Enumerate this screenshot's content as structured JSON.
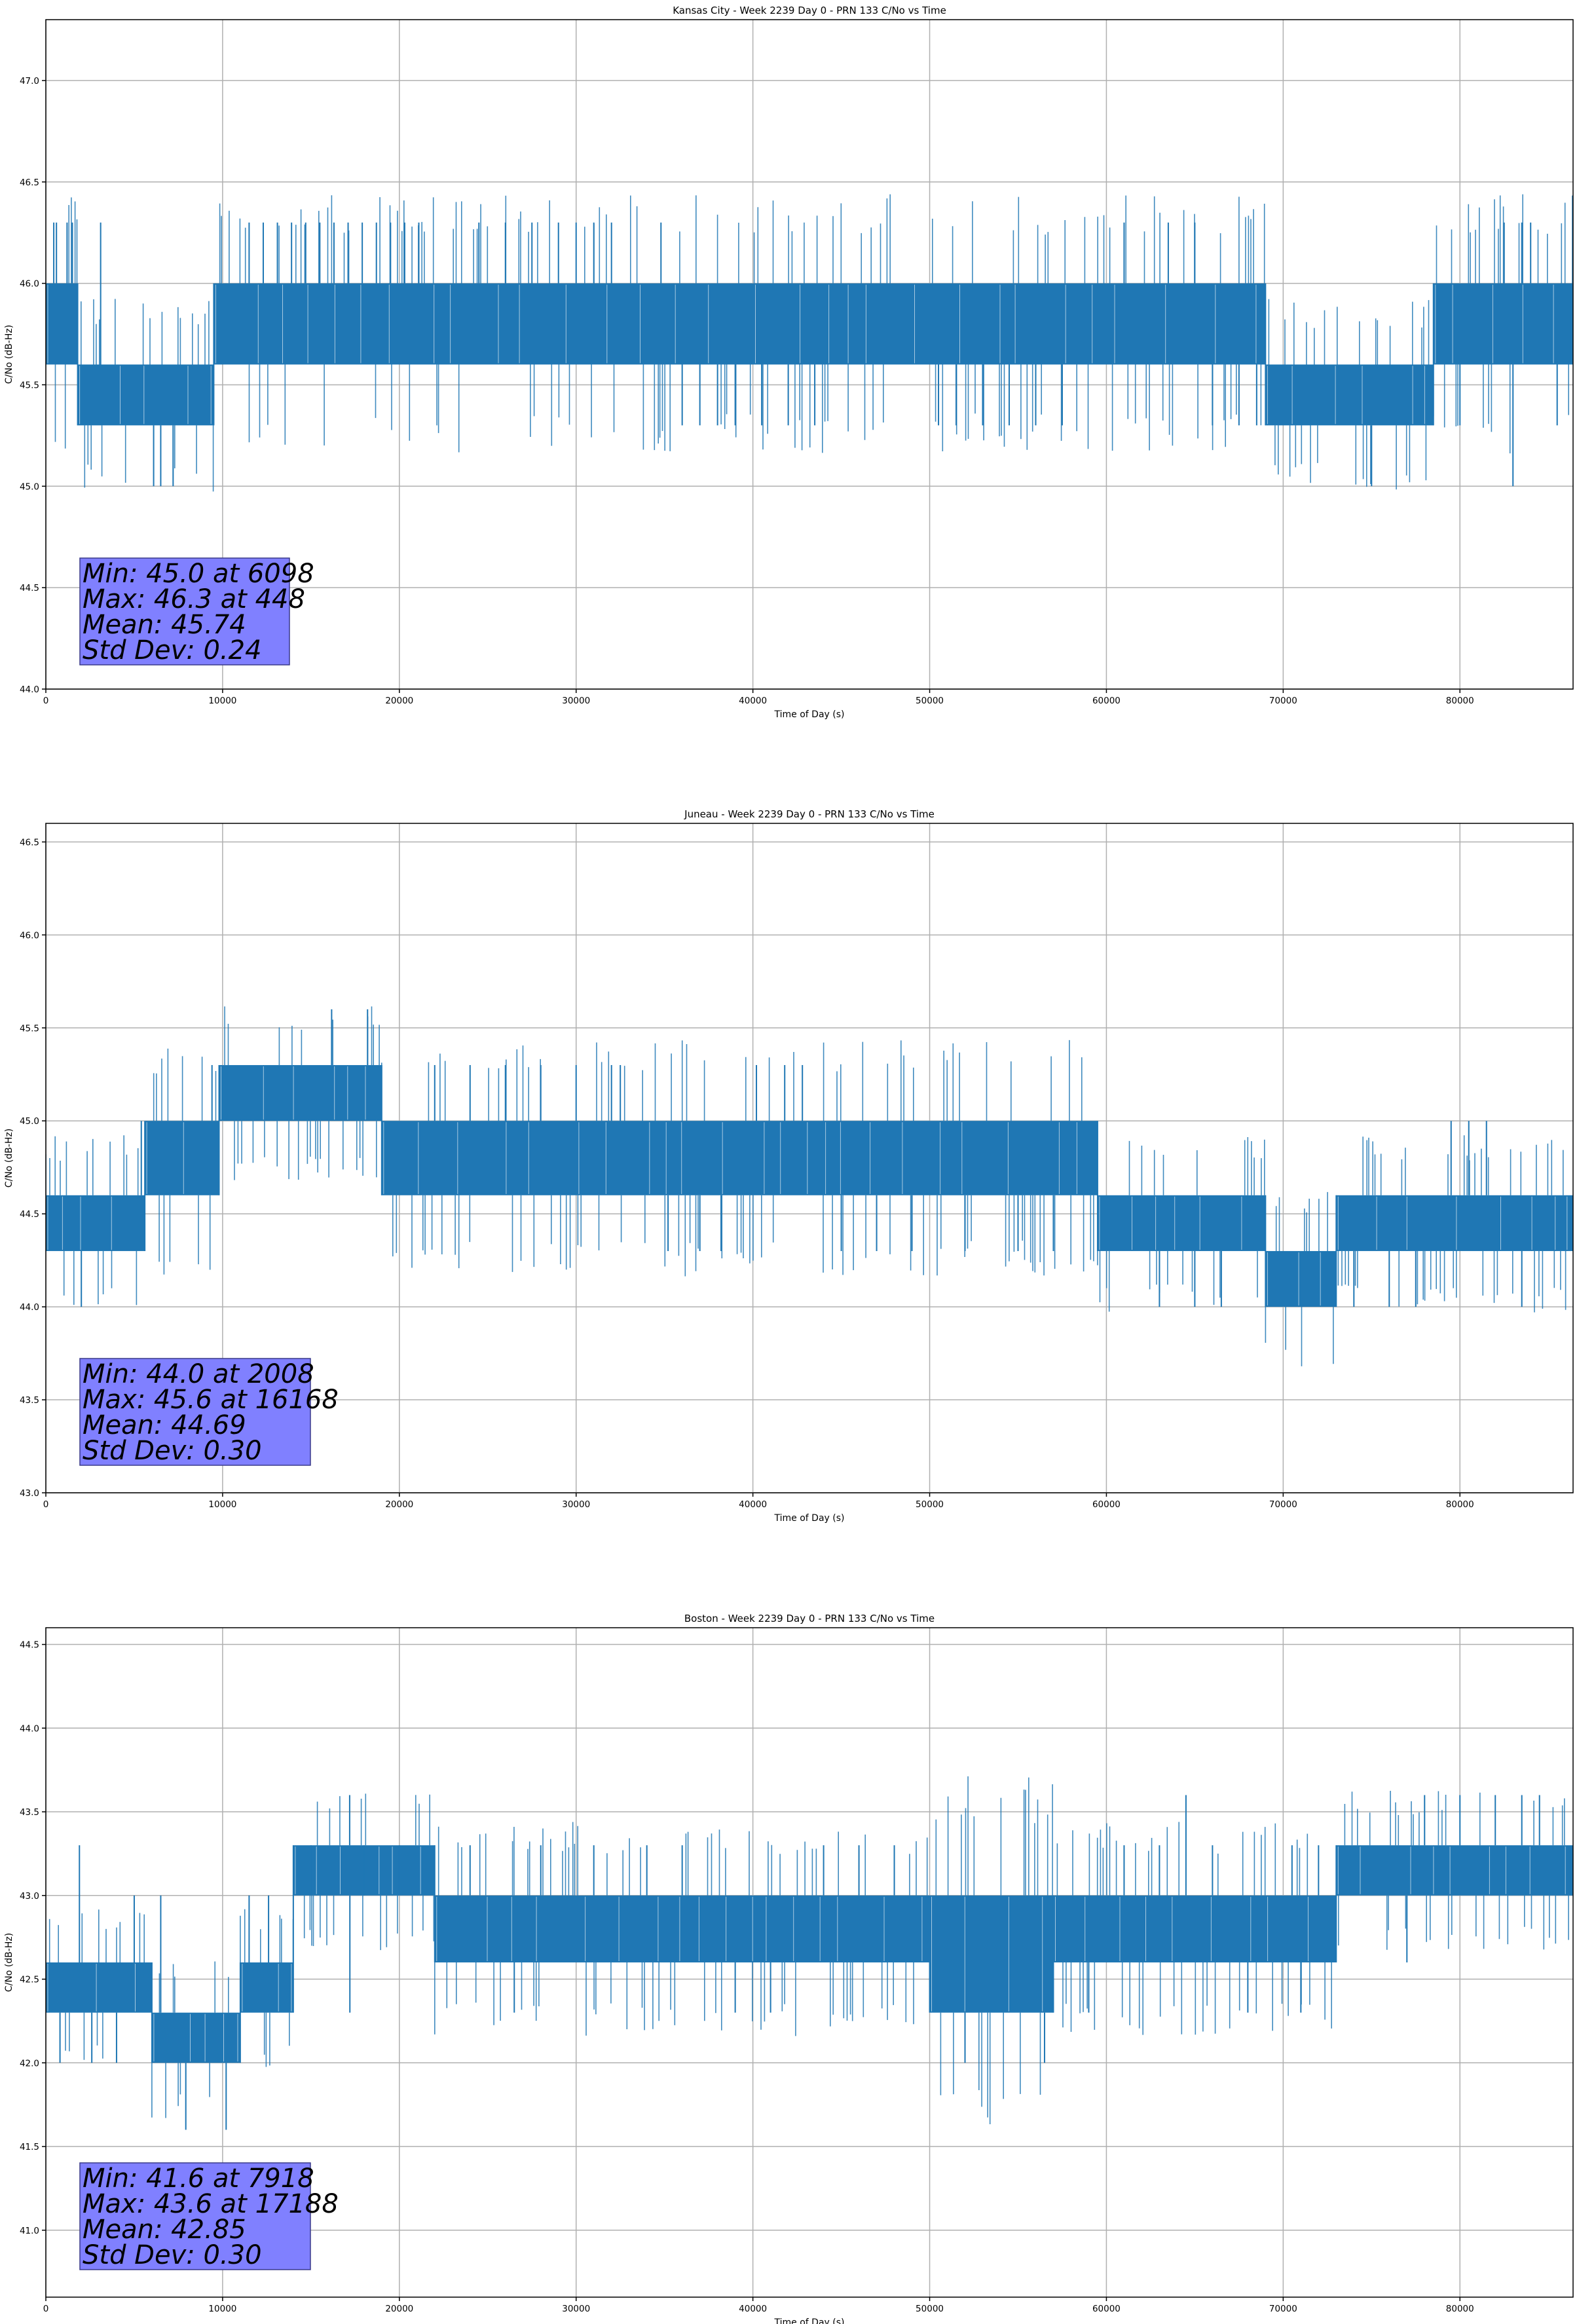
{
  "chart_data": [
    {
      "type": "line",
      "title": "Kansas City - Week 2239 Day 0 - PRN 133 C/No vs Time",
      "xlabel": "Time of Day (s)",
      "ylabel": "C/No (dB-Hz)",
      "xlim": [
        0,
        86400
      ],
      "ylim": [
        44.0,
        47.3
      ],
      "xticks": [
        0,
        10000,
        20000,
        30000,
        40000,
        50000,
        60000,
        70000,
        80000
      ],
      "xtick_labels": [
        "0",
        "10000",
        "20000",
        "30000",
        "40000",
        "50000",
        "60000",
        "70000",
        "80000"
      ],
      "yticks": [
        44.0,
        44.5,
        45.0,
        45.5,
        46.0,
        46.5,
        47.0
      ],
      "ytick_labels": [
        "44.0",
        "44.5",
        "45.0",
        "45.5",
        "46.0",
        "46.5",
        "47.0"
      ],
      "grid": true,
      "color": "#1f77b4",
      "band_segments": [
        {
          "x": [
            0,
            1800
          ],
          "range": [
            45.6,
            46.0
          ]
        },
        {
          "x": [
            1800,
            9500
          ],
          "range": [
            45.3,
            45.6
          ]
        },
        {
          "x": [
            9500,
            35500
          ],
          "range": [
            45.6,
            46.0
          ]
        },
        {
          "x": [
            35500,
            69000
          ],
          "range": [
            45.6,
            46.0
          ]
        },
        {
          "x": [
            69000,
            78500
          ],
          "range": [
            45.3,
            45.6
          ]
        },
        {
          "x": [
            78500,
            86400
          ],
          "range": [
            45.6,
            46.0
          ]
        }
      ],
      "spikes": [
        {
          "x": 448,
          "v": 46.3
        },
        {
          "x": 600,
          "v": 46.3
        },
        {
          "x": 1200,
          "v": 46.3
        },
        {
          "x": 1500,
          "v": 46.3
        },
        {
          "x": 2000,
          "v": 45.3
        },
        {
          "x": 3100,
          "v": 46.3
        },
        {
          "x": 3200,
          "v": 45.3
        },
        {
          "x": 6098,
          "v": 45.0
        },
        {
          "x": 6500,
          "v": 45.0
        },
        {
          "x": 7200,
          "v": 45.0
        },
        {
          "x": 4500,
          "v": 45.3
        },
        {
          "x": 5500,
          "v": 45.3
        },
        {
          "x": 8000,
          "v": 45.3
        },
        {
          "x": 9000,
          "v": 45.3
        },
        {
          "x": 11500,
          "v": 46.3
        },
        {
          "x": 12300,
          "v": 46.3
        },
        {
          "x": 13100,
          "v": 46.3
        },
        {
          "x": 13900,
          "v": 46.3
        },
        {
          "x": 14700,
          "v": 46.3
        },
        {
          "x": 15500,
          "v": 46.3
        },
        {
          "x": 16300,
          "v": 46.3
        },
        {
          "x": 17100,
          "v": 46.3
        },
        {
          "x": 17900,
          "v": 46.3
        },
        {
          "x": 18700,
          "v": 46.3
        },
        {
          "x": 19500,
          "v": 46.3
        },
        {
          "x": 20300,
          "v": 46.3
        },
        {
          "x": 21100,
          "v": 46.3
        },
        {
          "x": 24500,
          "v": 46.3
        },
        {
          "x": 26000,
          "v": 46.3
        },
        {
          "x": 27500,
          "v": 46.3
        },
        {
          "x": 29000,
          "v": 46.3
        },
        {
          "x": 30000,
          "v": 46.3
        },
        {
          "x": 31000,
          "v": 46.3
        },
        {
          "x": 32000,
          "v": 46.3
        },
        {
          "x": 34800,
          "v": 46.3
        },
        {
          "x": 36000,
          "v": 45.3
        },
        {
          "x": 37000,
          "v": 45.3
        },
        {
          "x": 38000,
          "v": 45.3
        },
        {
          "x": 39000,
          "v": 45.3
        },
        {
          "x": 40500,
          "v": 45.3
        },
        {
          "x": 42000,
          "v": 45.3
        },
        {
          "x": 43500,
          "v": 45.3
        },
        {
          "x": 50500,
          "v": 45.3
        },
        {
          "x": 51500,
          "v": 45.3
        },
        {
          "x": 53000,
          "v": 45.3
        },
        {
          "x": 54500,
          "v": 45.3
        },
        {
          "x": 56000,
          "v": 45.3
        },
        {
          "x": 57500,
          "v": 45.3
        },
        {
          "x": 61000,
          "v": 46.3
        },
        {
          "x": 63500,
          "v": 46.3
        },
        {
          "x": 65000,
          "v": 46.3
        },
        {
          "x": 66000,
          "v": 45.3
        },
        {
          "x": 67500,
          "v": 45.3
        },
        {
          "x": 68500,
          "v": 45.3
        },
        {
          "x": 75000,
          "v": 45.0
        },
        {
          "x": 83000,
          "v": 45.0
        },
        {
          "x": 82500,
          "v": 46.3
        },
        {
          "x": 83500,
          "v": 46.3
        },
        {
          "x": 84000,
          "v": 46.3
        },
        {
          "x": 80000,
          "v": 45.3
        },
        {
          "x": 85500,
          "v": 45.3
        }
      ],
      "stats": [
        "Min: 45.0 at 6098",
        "Max: 46.3 at 448",
        "Mean: 45.74",
        "Std Dev: 0.24"
      ]
    },
    {
      "type": "line",
      "title": "Juneau - Week 2239 Day 0 - PRN 133 C/No vs Time",
      "xlabel": "Time of Day (s)",
      "ylabel": "C/No (dB-Hz)",
      "xlim": [
        0,
        86400
      ],
      "ylim": [
        43.0,
        46.6
      ],
      "xticks": [
        0,
        10000,
        20000,
        30000,
        40000,
        50000,
        60000,
        70000,
        80000
      ],
      "xtick_labels": [
        "0",
        "10000",
        "20000",
        "30000",
        "40000",
        "50000",
        "60000",
        "70000",
        "80000"
      ],
      "yticks": [
        43.0,
        43.5,
        44.0,
        44.5,
        45.0,
        45.5,
        46.0,
        46.5
      ],
      "ytick_labels": [
        "43.0",
        "43.5",
        "44.0",
        "44.5",
        "45.0",
        "45.5",
        "46.0",
        "46.5"
      ],
      "grid": true,
      "color": "#1f77b4",
      "band_segments": [
        {
          "x": [
            0,
            5600
          ],
          "range": [
            44.3,
            44.6
          ]
        },
        {
          "x": [
            5600,
            9800
          ],
          "range": [
            44.6,
            45.0
          ]
        },
        {
          "x": [
            9800,
            19000
          ],
          "range": [
            45.0,
            45.3
          ]
        },
        {
          "x": [
            19000,
            44000
          ],
          "range": [
            44.6,
            45.0
          ]
        },
        {
          "x": [
            44000,
            59500
          ],
          "range": [
            44.6,
            45.0
          ]
        },
        {
          "x": [
            59500,
            69000
          ],
          "range": [
            44.3,
            44.6
          ]
        },
        {
          "x": [
            69000,
            73000
          ],
          "range": [
            44.0,
            44.3
          ]
        },
        {
          "x": [
            73000,
            86400
          ],
          "range": [
            44.3,
            44.6
          ]
        }
      ],
      "spikes": [
        {
          "x": 2008,
          "v": 44.0
        },
        {
          "x": 4800,
          "v": 44.3
        },
        {
          "x": 5400,
          "v": 45.0
        },
        {
          "x": 9400,
          "v": 45.3
        },
        {
          "x": 16168,
          "v": 45.6
        },
        {
          "x": 18200,
          "v": 45.6
        },
        {
          "x": 19500,
          "v": 44.6
        },
        {
          "x": 22000,
          "v": 45.3
        },
        {
          "x": 24000,
          "v": 45.3
        },
        {
          "x": 26000,
          "v": 45.3
        },
        {
          "x": 28000,
          "v": 45.3
        },
        {
          "x": 30000,
          "v": 45.3
        },
        {
          "x": 32000,
          "v": 45.3
        },
        {
          "x": 32500,
          "v": 45.3
        },
        {
          "x": 35200,
          "v": 44.3
        },
        {
          "x": 37000,
          "v": 44.3
        },
        {
          "x": 38200,
          "v": 44.3
        },
        {
          "x": 40200,
          "v": 45.3
        },
        {
          "x": 41800,
          "v": 45.3
        },
        {
          "x": 42800,
          "v": 45.3
        },
        {
          "x": 45000,
          "v": 44.3
        },
        {
          "x": 47000,
          "v": 44.3
        },
        {
          "x": 49000,
          "v": 44.3
        },
        {
          "x": 52000,
          "v": 44.3
        },
        {
          "x": 55000,
          "v": 44.3
        },
        {
          "x": 57000,
          "v": 44.3
        },
        {
          "x": 63000,
          "v": 44.0
        },
        {
          "x": 65000,
          "v": 44.0
        },
        {
          "x": 66500,
          "v": 44.0
        },
        {
          "x": 74000,
          "v": 44.0
        },
        {
          "x": 76000,
          "v": 44.0
        },
        {
          "x": 77500,
          "v": 44.0
        },
        {
          "x": 79500,
          "v": 45.0
        },
        {
          "x": 80500,
          "v": 45.0
        },
        {
          "x": 81500,
          "v": 45.0
        },
        {
          "x": 83500,
          "v": 44.0
        }
      ],
      "stats": [
        "Min: 44.0 at 2008",
        "Max: 45.6 at 16168",
        "Mean: 44.69",
        "Std Dev: 0.30"
      ]
    },
    {
      "type": "line",
      "title": "Boston - Week 2239 Day 0 - PRN 133 C/No vs Time",
      "xlabel": "Time of Day (s)",
      "ylabel": "C/No (dB-Hz)",
      "xlim": [
        0,
        86400
      ],
      "ylim": [
        40.6,
        44.6
      ],
      "xticks": [
        0,
        10000,
        20000,
        30000,
        40000,
        50000,
        60000,
        70000,
        80000
      ],
      "xtick_labels": [
        "0",
        "10000",
        "20000",
        "30000",
        "40000",
        "50000",
        "60000",
        "70000",
        "80000"
      ],
      "yticks": [
        41.0,
        41.5,
        42.0,
        42.5,
        43.0,
        43.5,
        44.0,
        44.5
      ],
      "ytick_labels": [
        "41.0",
        "41.5",
        "42.0",
        "42.5",
        "43.0",
        "43.5",
        "44.0",
        "44.5"
      ],
      "grid": true,
      "color": "#1f77b4",
      "band_segments": [
        {
          "x": [
            0,
            6000
          ],
          "range": [
            42.3,
            42.6
          ]
        },
        {
          "x": [
            6000,
            11000
          ],
          "range": [
            42.0,
            42.3
          ]
        },
        {
          "x": [
            11000,
            14000
          ],
          "range": [
            42.3,
            42.6
          ]
        },
        {
          "x": [
            14000,
            22000
          ],
          "range": [
            43.0,
            43.3
          ]
        },
        {
          "x": [
            22000,
            50000
          ],
          "range": [
            42.6,
            43.0
          ]
        },
        {
          "x": [
            50000,
            57000
          ],
          "range": [
            42.3,
            43.0
          ]
        },
        {
          "x": [
            57000,
            73000
          ],
          "range": [
            42.6,
            43.0
          ]
        },
        {
          "x": [
            73000,
            86400
          ],
          "range": [
            43.0,
            43.3
          ]
        }
      ],
      "spikes": [
        {
          "x": 1900,
          "v": 43.3
        },
        {
          "x": 800,
          "v": 42.0
        },
        {
          "x": 2600,
          "v": 42.0
        },
        {
          "x": 4000,
          "v": 42.0
        },
        {
          "x": 5000,
          "v": 43.0
        },
        {
          "x": 6500,
          "v": 43.0
        },
        {
          "x": 7918,
          "v": 41.6
        },
        {
          "x": 10200,
          "v": 41.6
        },
        {
          "x": 9000,
          "v": 42.0
        },
        {
          "x": 10900,
          "v": 42.0
        },
        {
          "x": 11500,
          "v": 43.0
        },
        {
          "x": 12600,
          "v": 43.0
        },
        {
          "x": 17188,
          "v": 43.6
        },
        {
          "x": 17200,
          "v": 42.3
        },
        {
          "x": 15000,
          "v": 43.3
        },
        {
          "x": 18000,
          "v": 43.3
        },
        {
          "x": 20000,
          "v": 43.3
        },
        {
          "x": 24000,
          "v": 43.3
        },
        {
          "x": 26500,
          "v": 42.3
        },
        {
          "x": 28000,
          "v": 43.3
        },
        {
          "x": 31000,
          "v": 43.3
        },
        {
          "x": 34000,
          "v": 43.3
        },
        {
          "x": 36000,
          "v": 43.3
        },
        {
          "x": 39000,
          "v": 42.3
        },
        {
          "x": 41000,
          "v": 42.3
        },
        {
          "x": 44000,
          "v": 43.3
        },
        {
          "x": 46000,
          "v": 43.3
        },
        {
          "x": 48000,
          "v": 43.3
        },
        {
          "x": 52000,
          "v": 42.0
        },
        {
          "x": 56500,
          "v": 42.0
        },
        {
          "x": 54000,
          "v": 42.3
        },
        {
          "x": 59000,
          "v": 42.3
        },
        {
          "x": 61000,
          "v": 43.3
        },
        {
          "x": 63000,
          "v": 43.3
        },
        {
          "x": 64500,
          "v": 43.6
        },
        {
          "x": 66000,
          "v": 43.3
        },
        {
          "x": 68000,
          "v": 42.3
        },
        {
          "x": 71000,
          "v": 42.3
        },
        {
          "x": 70500,
          "v": 43.3
        },
        {
          "x": 72000,
          "v": 43.3
        },
        {
          "x": 77000,
          "v": 42.6
        },
        {
          "x": 78000,
          "v": 43.6
        },
        {
          "x": 80000,
          "v": 43.6
        },
        {
          "x": 82000,
          "v": 43.6
        },
        {
          "x": 83500,
          "v": 43.6
        },
        {
          "x": 84500,
          "v": 43.6
        }
      ],
      "stats": [
        "Min: 41.6 at 7918",
        "Max: 43.6 at 17188",
        "Mean: 42.85",
        "Std Dev: 0.30"
      ]
    }
  ]
}
